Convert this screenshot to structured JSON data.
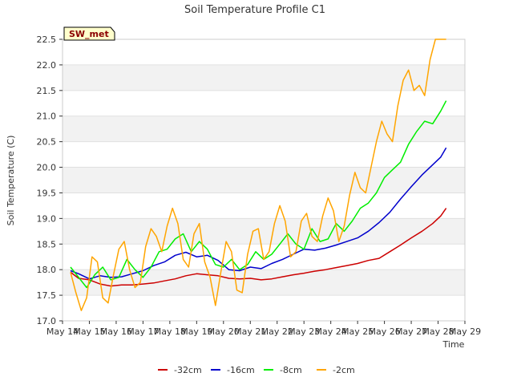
{
  "chart_data": {
    "type": "line",
    "title": "Soil Temperature Profile C1",
    "xlabel": "Time",
    "ylabel": "Soil Temperature (C)",
    "badge": "SW_met",
    "ylim": [
      17.0,
      22.5
    ],
    "xlim": [
      14,
      29
    ],
    "y_ticks": [
      "17.0",
      "17.5",
      "18.0",
      "18.5",
      "19.0",
      "19.5",
      "20.0",
      "20.5",
      "21.0",
      "21.5",
      "22.0",
      "22.5"
    ],
    "x_ticks": [
      "May 14",
      "May 15",
      "May 16",
      "May 17",
      "May 18",
      "May 19",
      "May 20",
      "May 21",
      "May 22",
      "May 23",
      "May 24",
      "May 25",
      "May 26",
      "May 27",
      "May 28",
      "May 29"
    ],
    "x_tick_values": [
      14,
      15,
      16,
      17,
      18,
      19,
      20,
      21,
      22,
      23,
      24,
      25,
      26,
      27,
      28,
      29
    ],
    "grid": "horizontal bands",
    "legend_position": "bottom-center",
    "series": [
      {
        "name": "-32cm",
        "color": "#cc0000",
        "x": [
          14.3,
          14.6,
          15.0,
          15.4,
          15.8,
          16.2,
          16.6,
          17.0,
          17.4,
          17.8,
          18.2,
          18.6,
          19.0,
          19.4,
          19.8,
          20.2,
          20.6,
          21.0,
          21.4,
          21.8,
          22.2,
          22.6,
          23.0,
          23.4,
          23.8,
          24.2,
          24.6,
          25.0,
          25.4,
          25.8,
          26.2,
          26.6,
          27.0,
          27.4,
          27.8,
          28.1,
          28.3
        ],
        "values": [
          17.95,
          17.83,
          17.8,
          17.72,
          17.68,
          17.7,
          17.7,
          17.72,
          17.74,
          17.78,
          17.82,
          17.88,
          17.92,
          17.9,
          17.88,
          17.83,
          17.82,
          17.83,
          17.8,
          17.82,
          17.86,
          17.9,
          17.93,
          17.97,
          18.0,
          18.04,
          18.08,
          18.12,
          18.18,
          18.22,
          18.35,
          18.48,
          18.62,
          18.75,
          18.9,
          19.05,
          19.2
        ]
      },
      {
        "name": "-16cm",
        "color": "#0000cc",
        "x": [
          14.3,
          14.6,
          15.0,
          15.4,
          15.8,
          16.2,
          16.6,
          17.0,
          17.4,
          17.8,
          18.2,
          18.6,
          19.0,
          19.4,
          19.8,
          20.2,
          20.6,
          21.0,
          21.4,
          21.8,
          22.2,
          22.6,
          23.0,
          23.4,
          23.8,
          24.2,
          24.6,
          25.0,
          25.4,
          25.8,
          26.2,
          26.6,
          27.0,
          27.4,
          27.8,
          28.1,
          28.3
        ],
        "values": [
          17.98,
          17.92,
          17.82,
          17.88,
          17.85,
          17.86,
          17.92,
          17.98,
          18.08,
          18.15,
          18.28,
          18.34,
          18.25,
          18.28,
          18.18,
          18.0,
          17.98,
          18.05,
          18.02,
          18.12,
          18.2,
          18.3,
          18.4,
          18.38,
          18.42,
          18.48,
          18.55,
          18.62,
          18.75,
          18.92,
          19.12,
          19.38,
          19.62,
          19.85,
          20.05,
          20.2,
          20.38
        ]
      },
      {
        "name": "-8cm",
        "color": "#00ee00",
        "x": [
          14.3,
          14.6,
          14.9,
          15.2,
          15.5,
          15.8,
          16.1,
          16.4,
          16.7,
          17.0,
          17.3,
          17.6,
          17.9,
          18.2,
          18.5,
          18.8,
          19.1,
          19.4,
          19.7,
          20.0,
          20.3,
          20.6,
          20.9,
          21.2,
          21.5,
          21.8,
          22.1,
          22.4,
          22.7,
          23.0,
          23.3,
          23.6,
          23.9,
          24.2,
          24.5,
          24.8,
          25.1,
          25.4,
          25.7,
          26.0,
          26.3,
          26.6,
          26.9,
          27.2,
          27.5,
          27.8,
          28.1,
          28.3
        ],
        "values": [
          18.05,
          17.85,
          17.65,
          17.9,
          18.05,
          17.8,
          17.85,
          18.2,
          18.0,
          17.85,
          18.05,
          18.35,
          18.4,
          18.6,
          18.7,
          18.35,
          18.55,
          18.4,
          18.1,
          18.05,
          18.2,
          18.0,
          18.1,
          18.35,
          18.2,
          18.3,
          18.5,
          18.7,
          18.5,
          18.4,
          18.8,
          18.55,
          18.6,
          18.9,
          18.75,
          18.95,
          19.2,
          19.3,
          19.5,
          19.8,
          19.95,
          20.1,
          20.45,
          20.7,
          20.9,
          20.85,
          21.1,
          21.3
        ]
      },
      {
        "name": "-2cm",
        "color": "#ffa500",
        "x": [
          14.3,
          14.5,
          14.7,
          14.9,
          15.1,
          15.3,
          15.5,
          15.7,
          15.9,
          16.1,
          16.3,
          16.5,
          16.7,
          16.9,
          17.1,
          17.3,
          17.5,
          17.7,
          17.9,
          18.1,
          18.3,
          18.5,
          18.7,
          18.9,
          19.1,
          19.3,
          19.5,
          19.7,
          19.9,
          20.1,
          20.3,
          20.5,
          20.7,
          20.9,
          21.1,
          21.3,
          21.5,
          21.7,
          21.9,
          22.1,
          22.3,
          22.5,
          22.7,
          22.9,
          23.1,
          23.3,
          23.5,
          23.7,
          23.9,
          24.1,
          24.3,
          24.5,
          24.7,
          24.9,
          25.1,
          25.3,
          25.5,
          25.7,
          25.9,
          26.1,
          26.3,
          26.5,
          26.7,
          26.9,
          27.1,
          27.3,
          27.5,
          27.7,
          27.9,
          28.1,
          28.3
        ],
        "values": [
          17.95,
          17.55,
          17.2,
          17.45,
          18.25,
          18.15,
          17.45,
          17.35,
          17.9,
          18.4,
          18.55,
          18.0,
          17.65,
          17.75,
          18.45,
          18.8,
          18.65,
          18.35,
          18.85,
          19.2,
          18.9,
          18.2,
          18.05,
          18.7,
          18.9,
          18.15,
          17.85,
          17.3,
          17.95,
          18.55,
          18.35,
          17.6,
          17.55,
          18.3,
          18.75,
          18.8,
          18.2,
          18.35,
          18.9,
          19.25,
          18.95,
          18.25,
          18.35,
          18.95,
          19.1,
          18.65,
          18.55,
          19.05,
          19.4,
          19.15,
          18.55,
          18.85,
          19.45,
          19.9,
          19.6,
          19.5,
          20.0,
          20.5,
          20.9,
          20.65,
          20.5,
          21.2,
          21.7,
          21.9,
          21.5,
          21.6,
          21.4,
          22.1,
          22.5,
          22.5,
          22.5
        ]
      }
    ]
  }
}
